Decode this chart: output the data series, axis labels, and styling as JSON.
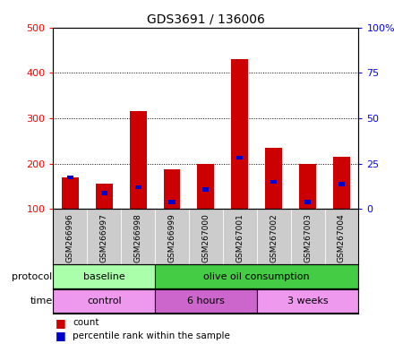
{
  "title": "GDS3691 / 136006",
  "samples": [
    "GSM266996",
    "GSM266997",
    "GSM266998",
    "GSM266999",
    "GSM267000",
    "GSM267001",
    "GSM267002",
    "GSM267003",
    "GSM267004"
  ],
  "count_values": [
    170,
    155,
    315,
    187,
    200,
    430,
    235,
    200,
    215
  ],
  "percentile_values": [
    170,
    135,
    148,
    115,
    143,
    213,
    160,
    115,
    155
  ],
  "bar_bottom": 100,
  "ylim_left": [
    100,
    500
  ],
  "ylim_right": [
    0,
    100
  ],
  "yticks_left": [
    100,
    200,
    300,
    400,
    500
  ],
  "yticks_right": [
    0,
    25,
    50,
    75,
    100
  ],
  "ytick_labels_right": [
    "0",
    "25",
    "50",
    "75",
    "100%"
  ],
  "bar_color": "#cc0000",
  "blue_color": "#0000cc",
  "protocol_groups": [
    {
      "label": "baseline",
      "start": 0,
      "end": 3,
      "color": "#aaffaa"
    },
    {
      "label": "olive oil consumption",
      "start": 3,
      "end": 9,
      "color": "#44cc44"
    }
  ],
  "time_groups": [
    {
      "label": "control",
      "start": 0,
      "end": 3,
      "color": "#ee99ee"
    },
    {
      "label": "6 hours",
      "start": 3,
      "end": 6,
      "color": "#cc66cc"
    },
    {
      "label": "3 weeks",
      "start": 6,
      "end": 9,
      "color": "#ee99ee"
    }
  ],
  "legend_count_label": "count",
  "legend_pct_label": "percentile rank within the sample",
  "label_protocol": "protocol",
  "label_time": "time",
  "bar_width": 0.5,
  "sample_col_color": "#cccccc",
  "grid_color": "#000000"
}
